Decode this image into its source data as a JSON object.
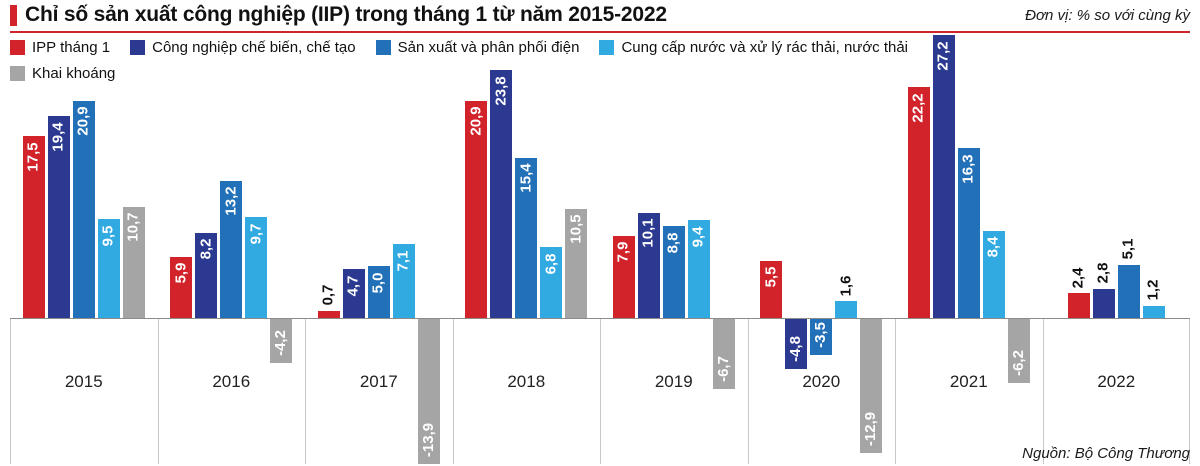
{
  "header": {
    "title": "Chỉ số sản xuất công nghiệp (IIP) trong tháng 1 từ năm 2015-2022",
    "unit_note": "Đơn vị: % so với cùng kỳ"
  },
  "footer": {
    "source": "Nguồn: Bộ Công Thương"
  },
  "colors": {
    "red": "#d2232a",
    "navy": "#2b3990",
    "blue": "#2170b8",
    "cyan": "#31a9e1",
    "gray": "#a5a5a5"
  },
  "chart_data": {
    "type": "bar",
    "title": "Chỉ số sản xuất công nghiệp (IIP) trong tháng 1 từ năm 2015-2022",
    "unit": "% so với cùng kỳ",
    "categories": [
      "2015",
      "2016",
      "2017",
      "2018",
      "2019",
      "2020",
      "2021",
      "2022"
    ],
    "series": [
      {
        "name": "IPP tháng 1",
        "color_key": "red",
        "values": [
          17.5,
          5.9,
          0.7,
          20.9,
          7.9,
          5.5,
          22.2,
          2.4
        ]
      },
      {
        "name": "Công nghiệp chế biến, chế tạo",
        "color_key": "navy",
        "values": [
          19.4,
          8.2,
          4.7,
          23.8,
          10.1,
          -4.8,
          27.2,
          2.8
        ]
      },
      {
        "name": "Sản xuất và phân phối điện",
        "color_key": "blue",
        "values": [
          20.9,
          13.2,
          5.0,
          15.4,
          8.8,
          -3.5,
          16.3,
          5.1
        ]
      },
      {
        "name": "Cung cấp nước và xử lý rác thải, nước thải",
        "color_key": "cyan",
        "values": [
          9.5,
          9.7,
          7.1,
          6.8,
          9.4,
          1.6,
          8.4,
          1.2
        ]
      },
      {
        "name": "Khai khoáng",
        "color_key": "gray",
        "values": [
          10.7,
          -4.2,
          -13.9,
          10.5,
          -6.7,
          -12.9,
          -6.2,
          null
        ]
      }
    ],
    "ylim": [
      -15,
      28
    ],
    "grid": "vertical-separators-below-baseline-only",
    "legend_position": "top-left",
    "value_label_format": "comma-decimal",
    "labels_outside": [
      [
        0,
        2
      ],
      [
        3,
        5
      ],
      [
        0,
        7
      ],
      [
        1,
        7
      ],
      [
        2,
        7
      ],
      [
        3,
        7
      ]
    ]
  }
}
